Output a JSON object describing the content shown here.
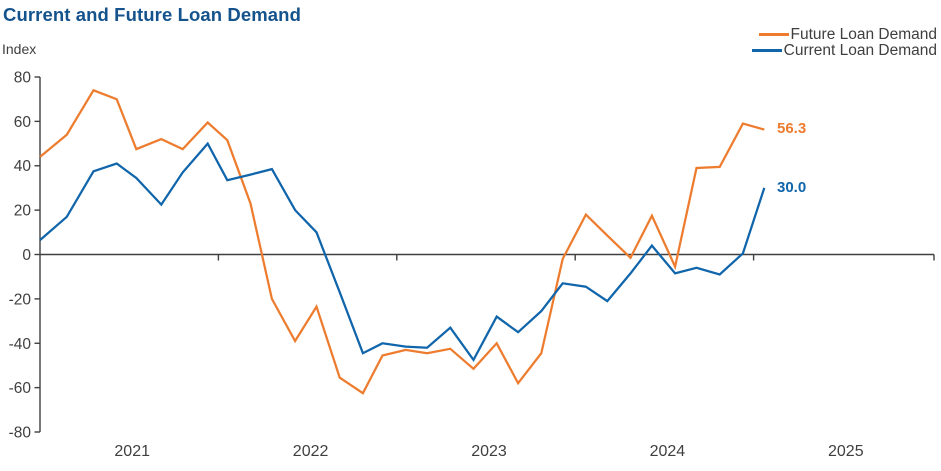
{
  "title": "Current and Future Loan Demand",
  "y_axis_label": "Index",
  "colors": {
    "future": "#ed7c2f",
    "current": "#1065ab",
    "title_text": "#15538d",
    "axis": "#404040",
    "label_text": "#3f3f3f"
  },
  "legend": [
    {
      "label": "Future Loan Demand",
      "series": "future"
    },
    {
      "label": "Current Loan Demand",
      "series": "current"
    }
  ],
  "end_labels": {
    "future": "56.3",
    "current": "30.0"
  },
  "chart_data": {
    "type": "line",
    "title": "Current and Future Loan Demand",
    "ylabel": "Index",
    "x_unit": "fractional_year",
    "xlim": [
      2021,
      2026
    ],
    "ylim": [
      -80,
      80
    ],
    "grid": false,
    "legend_position": "top-right",
    "y_ticks": [
      80,
      60,
      40,
      20,
      0,
      -20,
      -40,
      -60,
      -80
    ],
    "x_tick_years": [
      "2021",
      "2022",
      "2023",
      "2024",
      "2025"
    ],
    "series": [
      {
        "name": "Future Loan Demand",
        "color_key": "future",
        "end_label": "56.3",
        "points": [
          [
            2021.0,
            44
          ],
          [
            2021.15,
            54
          ],
          [
            2021.3,
            74
          ],
          [
            2021.43,
            70
          ],
          [
            2021.54,
            47.5
          ],
          [
            2021.68,
            52
          ],
          [
            2021.8,
            47.5
          ],
          [
            2021.94,
            59.5
          ],
          [
            2022.05,
            51.5
          ],
          [
            2022.18,
            23
          ],
          [
            2022.3,
            -20
          ],
          [
            2022.43,
            -39
          ],
          [
            2022.55,
            -23.5
          ],
          [
            2022.68,
            -55.5
          ],
          [
            2022.81,
            -62.5
          ],
          [
            2022.92,
            -45.5
          ],
          [
            2023.05,
            -43
          ],
          [
            2023.17,
            -44.5
          ],
          [
            2023.3,
            -42.5
          ],
          [
            2023.43,
            -51.5
          ],
          [
            2023.56,
            -40
          ],
          [
            2023.68,
            -58
          ],
          [
            2023.81,
            -44.5
          ],
          [
            2023.93,
            -2
          ],
          [
            2024.06,
            18
          ],
          [
            2024.18,
            8.5
          ],
          [
            2024.31,
            -1.5
          ],
          [
            2024.43,
            17.5
          ],
          [
            2024.56,
            -5.5
          ],
          [
            2024.68,
            39
          ],
          [
            2024.81,
            39.5
          ],
          [
            2024.94,
            59
          ],
          [
            2025.06,
            56.3
          ]
        ]
      },
      {
        "name": "Current Loan Demand",
        "color_key": "current",
        "end_label": "30.0",
        "points": [
          [
            2021.0,
            6.5
          ],
          [
            2021.15,
            17
          ],
          [
            2021.3,
            37.5
          ],
          [
            2021.43,
            41
          ],
          [
            2021.54,
            34.5
          ],
          [
            2021.68,
            22.5
          ],
          [
            2021.8,
            37
          ],
          [
            2021.94,
            50
          ],
          [
            2022.05,
            33.5
          ],
          [
            2022.18,
            36
          ],
          [
            2022.3,
            38.5
          ],
          [
            2022.43,
            20
          ],
          [
            2022.55,
            10
          ],
          [
            2022.68,
            -17
          ],
          [
            2022.81,
            -44.5
          ],
          [
            2022.92,
            -40
          ],
          [
            2023.05,
            -41.5
          ],
          [
            2023.17,
            -42
          ],
          [
            2023.3,
            -33
          ],
          [
            2023.43,
            -47.5
          ],
          [
            2023.56,
            -28
          ],
          [
            2023.68,
            -35
          ],
          [
            2023.81,
            -25.5
          ],
          [
            2023.93,
            -13
          ],
          [
            2024.06,
            -14.5
          ],
          [
            2024.18,
            -21
          ],
          [
            2024.31,
            -8.5
          ],
          [
            2024.43,
            4
          ],
          [
            2024.56,
            -8.5
          ],
          [
            2024.68,
            -6
          ],
          [
            2024.81,
            -9
          ],
          [
            2024.94,
            0.5
          ],
          [
            2025.06,
            30
          ]
        ]
      }
    ]
  }
}
